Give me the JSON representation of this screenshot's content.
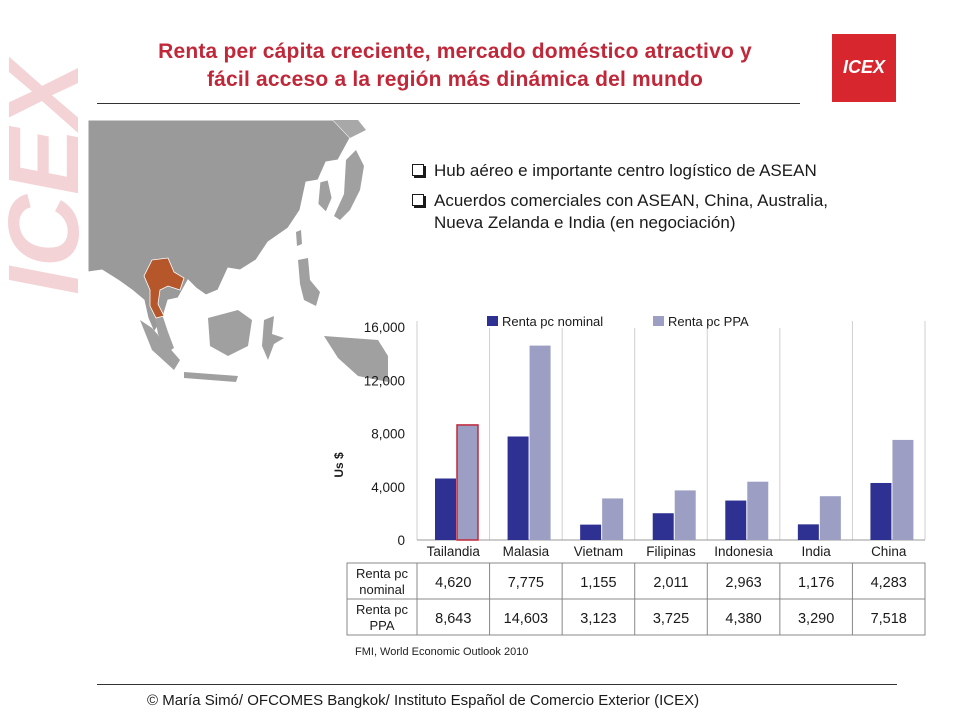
{
  "title": {
    "line1": "Renta per cápita creciente, mercado doméstico atractivo y",
    "line2": "fácil acceso a la región más dinámica del mundo"
  },
  "logo": {
    "text": "ICEX",
    "watermark_text": "ICEX"
  },
  "bullets": [
    "Hub aéreo e importante centro logístico de ASEAN",
    "Acuerdos comerciales con ASEAN, China, Australia, Nueva Zelanda e India (en negociación)"
  ],
  "colors": {
    "title": "#c0283a",
    "logo_bg": "#d8262e",
    "nominal": "#2e3192",
    "ppa": "#9c9fc3",
    "highlight_border": "#c0283a",
    "thailand": "#b5562b"
  },
  "chart_data": {
    "type": "bar",
    "categories": [
      "Tailandia",
      "Malasia",
      "Vietnam",
      "Filipinas",
      "Indonesia",
      "India",
      "China"
    ],
    "series": [
      {
        "name": "Renta pc nominal",
        "values": [
          4620,
          7775,
          1155,
          2011,
          2963,
          1176,
          4283
        ]
      },
      {
        "name": "Renta pc PPA",
        "values": [
          8643,
          14603,
          3123,
          3725,
          4380,
          3290,
          7518
        ]
      }
    ],
    "yticks": [
      "16,000",
      "12,000",
      "8,000",
      "4,000",
      "0"
    ],
    "ytick_values": [
      16000,
      12000,
      8000,
      4000,
      0
    ],
    "ylim": [
      0,
      16000
    ],
    "ylabel": "Us $",
    "legend": "top",
    "grid": "vertical",
    "table": {
      "row_labels": [
        [
          "Renta pc",
          "nominal"
        ],
        [
          "Renta pc",
          "PPA"
        ]
      ],
      "rows": [
        [
          "4,620",
          "7,775",
          "1,155",
          "2,011",
          "2,963",
          "1,176",
          "4,283"
        ],
        [
          "8,643",
          "14,603",
          "3,123",
          "3,725",
          "4,380",
          "3,290",
          "7,518"
        ]
      ]
    }
  },
  "source": "FMI, World Economic Outlook 2010",
  "footer": "© María  Simó/ OFCOMES Bangkok/ Instituto Español de Comercio Exterior (ICEX)"
}
